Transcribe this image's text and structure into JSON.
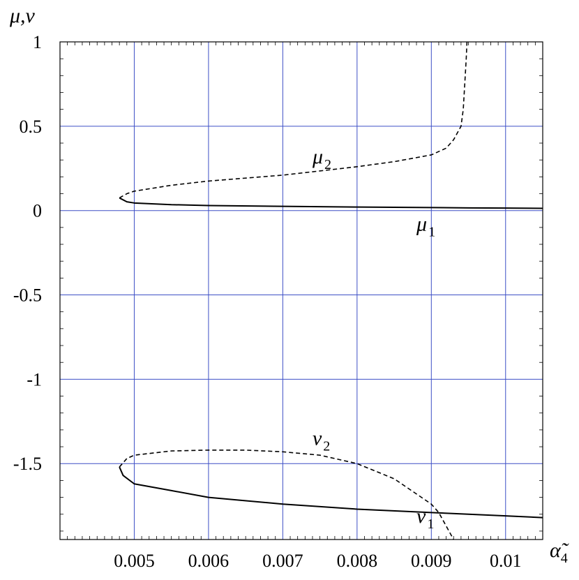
{
  "chart_data": {
    "type": "line",
    "title": "",
    "xlabel": "α̃",
    "xlabel_sub": "4",
    "ylabel": "μ,ν",
    "xlim": [
      0.004,
      0.0105
    ],
    "ylim": [
      -1.95,
      1.0
    ],
    "grid": true,
    "grid_color": "#3d4fc6",
    "x_ticks": [
      {
        "value": 0.005,
        "label": "0.005"
      },
      {
        "value": 0.006,
        "label": "0.006"
      },
      {
        "value": 0.007,
        "label": "0.007"
      },
      {
        "value": 0.008,
        "label": "0.008"
      },
      {
        "value": 0.009,
        "label": "0.009"
      },
      {
        "value": 0.01,
        "label": "0.01"
      }
    ],
    "y_ticks": [
      {
        "value": 1,
        "label": "1"
      },
      {
        "value": 0.5,
        "label": "0.5"
      },
      {
        "value": 0,
        "label": "0"
      },
      {
        "value": -0.5,
        "label": "-0.5"
      },
      {
        "value": -1,
        "label": "-1"
      },
      {
        "value": -1.5,
        "label": "-1.5"
      }
    ],
    "series": [
      {
        "name": "μ",
        "name_sub": "1",
        "style": "solid",
        "label_at": [
          0.0088,
          -0.12
        ],
        "points": [
          [
            0.0048,
            0.075
          ],
          [
            0.0049,
            0.052
          ],
          [
            0.005,
            0.045
          ],
          [
            0.0055,
            0.035
          ],
          [
            0.006,
            0.03
          ],
          [
            0.007,
            0.025
          ],
          [
            0.008,
            0.021
          ],
          [
            0.009,
            0.018
          ],
          [
            0.0095,
            0.016
          ],
          [
            0.01,
            0.015
          ],
          [
            0.0105,
            0.013
          ]
        ]
      },
      {
        "name": "μ",
        "name_sub": "2",
        "style": "dashed",
        "label_at": [
          0.0074,
          0.28
        ],
        "points": [
          [
            0.0048,
            0.075
          ],
          [
            0.0049,
            0.1
          ],
          [
            0.005,
            0.115
          ],
          [
            0.0055,
            0.15
          ],
          [
            0.006,
            0.175
          ],
          [
            0.007,
            0.21
          ],
          [
            0.008,
            0.26
          ],
          [
            0.0085,
            0.29
          ],
          [
            0.009,
            0.33
          ],
          [
            0.0092,
            0.37
          ],
          [
            0.0093,
            0.42
          ],
          [
            0.0094,
            0.5
          ],
          [
            0.00943,
            0.6
          ],
          [
            0.00945,
            0.75
          ],
          [
            0.00947,
            0.9
          ],
          [
            0.00948,
            1.0
          ]
        ]
      },
      {
        "name": "ν",
        "name_sub": "1",
        "style": "solid",
        "label_at": [
          0.0088,
          -1.85
        ],
        "points": [
          [
            0.0048,
            -1.52
          ],
          [
            0.00485,
            -1.57
          ],
          [
            0.005,
            -1.62
          ],
          [
            0.0055,
            -1.66
          ],
          [
            0.006,
            -1.7
          ],
          [
            0.007,
            -1.74
          ],
          [
            0.008,
            -1.77
          ],
          [
            0.009,
            -1.79
          ],
          [
            0.0095,
            -1.8
          ],
          [
            0.01,
            -1.81
          ],
          [
            0.0105,
            -1.82
          ]
        ]
      },
      {
        "name": "ν",
        "name_sub": "2",
        "style": "dashed",
        "label_at": [
          0.0074,
          -1.39
        ],
        "points": [
          [
            0.0048,
            -1.52
          ],
          [
            0.0049,
            -1.47
          ],
          [
            0.005,
            -1.45
          ],
          [
            0.0055,
            -1.425
          ],
          [
            0.006,
            -1.42
          ],
          [
            0.0065,
            -1.42
          ],
          [
            0.007,
            -1.43
          ],
          [
            0.0075,
            -1.45
          ],
          [
            0.008,
            -1.5
          ],
          [
            0.0085,
            -1.59
          ],
          [
            0.009,
            -1.74
          ],
          [
            0.0091,
            -1.79
          ],
          [
            0.0092,
            -1.87
          ],
          [
            0.0093,
            -1.95
          ]
        ]
      }
    ]
  }
}
